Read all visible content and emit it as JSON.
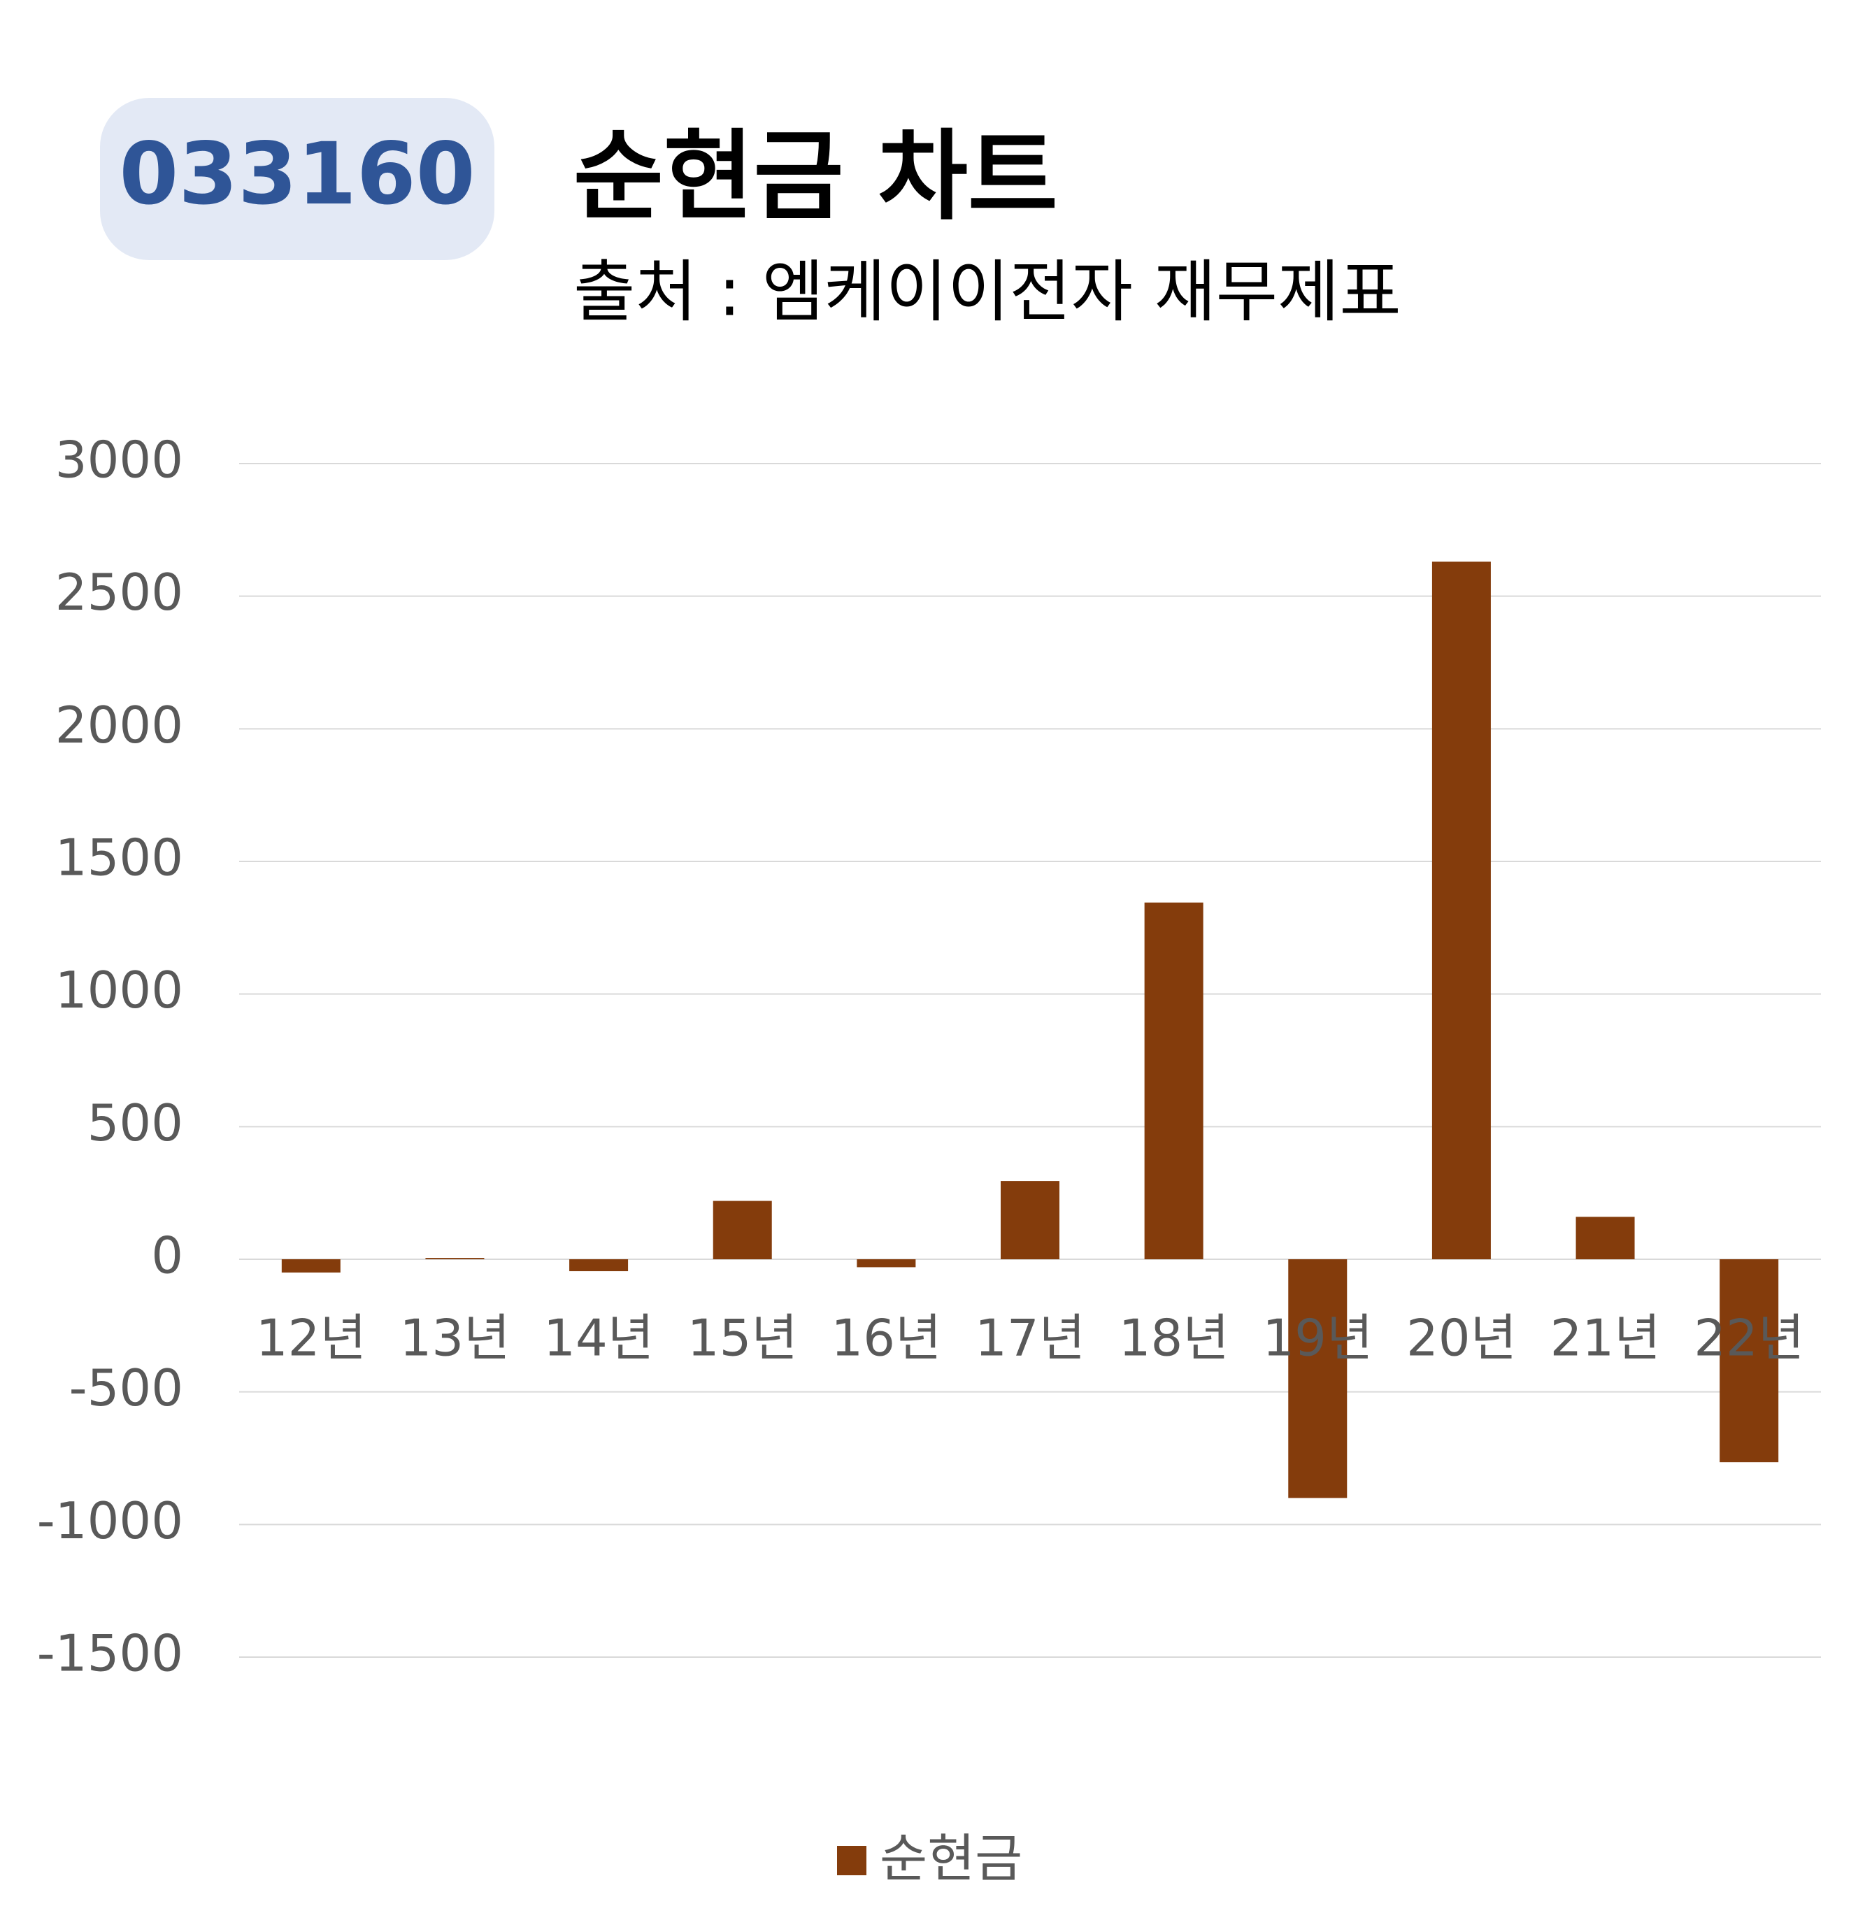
{
  "badge": "033160",
  "chart_data": {
    "type": "bar",
    "title": "순현금 차트",
    "subtitle": "출처 : 엠케이이전자 재무제표",
    "categories": [
      "12년",
      "13년",
      "14년",
      "15년",
      "16년",
      "17년",
      "18년",
      "19년",
      "20년",
      "21년",
      "22년"
    ],
    "series": [
      {
        "name": "순현금",
        "color": "#843c0c",
        "values": [
          -50,
          5,
          -45,
          220,
          -30,
          295,
          1345,
          -900,
          2630,
          160,
          -765
        ]
      }
    ],
    "ylim": [
      -1500,
      3000
    ],
    "yticks": [
      -1500,
      -1000,
      -500,
      0,
      500,
      1000,
      1500,
      2000,
      2500,
      3000
    ],
    "grid": true
  }
}
